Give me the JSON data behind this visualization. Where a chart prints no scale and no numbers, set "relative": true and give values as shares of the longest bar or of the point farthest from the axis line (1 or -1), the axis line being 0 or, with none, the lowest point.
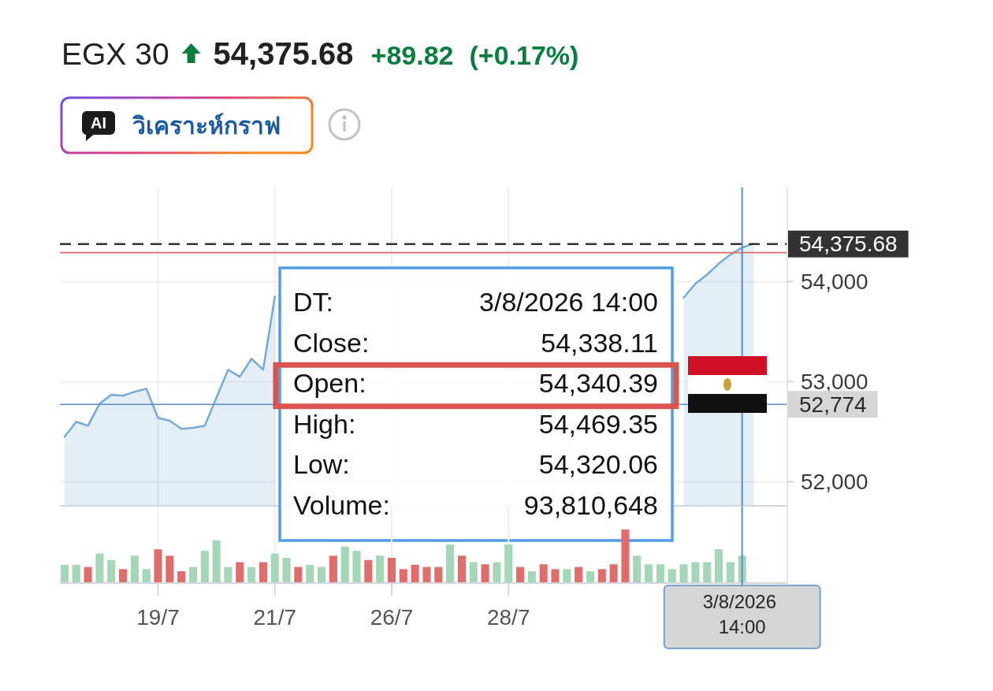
{
  "chart_data": [
    {
      "type": "area",
      "title": "EGX 30",
      "subtitle": "54,375.68",
      "annotations": [
        "+89.82",
        "(+0.17%)",
        "AI",
        "วิเคราะห์กราฟ",
        "DT:",
        "3/8/2026 14:00",
        "Close:",
        "54,338.11",
        "Open:",
        "54,340.39",
        "High:",
        "54,469.35",
        "Low:",
        "54,320.06",
        "Volume:",
        "93,810,648"
      ],
      "categories": [
        null,
        null,
        null,
        null,
        null,
        null,
        null,
        null,
        "19/7",
        null,
        null,
        null,
        null,
        null,
        null,
        null,
        null,
        null,
        "21/7",
        null,
        null,
        null,
        null,
        null,
        null,
        null,
        null,
        null,
        "26/7",
        null,
        null,
        null,
        null,
        null,
        null,
        null,
        null,
        null,
        "28/7",
        null,
        null,
        null,
        null,
        null,
        null,
        null,
        null,
        null,
        null,
        null,
        null,
        null,
        null,
        null,
        null,
        null,
        null,
        null,
        "3/8/2026 14:00",
        null
      ],
      "values": [
        52450,
        52600,
        52560,
        52780,
        52870,
        52860,
        52900,
        52930,
        52640,
        52610,
        52530,
        52540,
        52560,
        52840,
        53120,
        53050,
        53230,
        53120,
        53850,
        null,
        null,
        null,
        null,
        null,
        null,
        null,
        null,
        null,
        null,
        null,
        null,
        null,
        null,
        null,
        null,
        null,
        null,
        null,
        null,
        null,
        null,
        null,
        null,
        null,
        null,
        null,
        null,
        null,
        null,
        null,
        null,
        null,
        null,
        53840,
        53980,
        54070,
        54180,
        54270,
        54340,
        54380
      ],
      "color": "#76a9d6",
      "ylim": [
        51760,
        54940
      ],
      "yticks": [
        {
          "value": 52000,
          "label": "52,000"
        },
        {
          "value": 53000,
          "label": "53,000"
        },
        {
          "value": 54000,
          "label": "54,000"
        }
      ],
      "grid": true,
      "tick_labels": "y",
      "ref_lines": [
        {
          "axis": "y",
          "value": 54375.68,
          "label": "54,375.68",
          "color": "#333333",
          "line_style": "dashed"
        },
        {
          "axis": "y",
          "value": 54290,
          "color": "#e06666"
        },
        {
          "axis": "y",
          "value": 52774,
          "label": "52,774",
          "color": "#5b8ec4"
        },
        {
          "axis": "x",
          "value": "3/8/2026 14:00",
          "color": "#5b8ec4"
        }
      ]
    },
    {
      "type": "bar",
      "relative": true,
      "categories": [
        null,
        null,
        null,
        null,
        null,
        null,
        null,
        null,
        "19/7",
        null,
        null,
        null,
        null,
        null,
        null,
        null,
        null,
        null,
        "21/7",
        null,
        null,
        null,
        null,
        null,
        null,
        null,
        null,
        null,
        "26/7",
        null,
        null,
        null,
        null,
        null,
        null,
        null,
        null,
        null,
        "28/7",
        null,
        null,
        null,
        null,
        null,
        null,
        null,
        null,
        null,
        null,
        null,
        null,
        null,
        null,
        null,
        null,
        null,
        null,
        null,
        "3/8/2026 14:00",
        null
      ],
      "values": [
        0.34,
        0.34,
        0.3,
        0.55,
        0.43,
        0.26,
        0.51,
        0.26,
        0.63,
        0.51,
        0.22,
        0.3,
        0.6,
        0.8,
        0.3,
        0.39,
        0.3,
        0.39,
        0.55,
        0.47,
        0.3,
        0.34,
        0.3,
        0.51,
        0.68,
        0.6,
        0.43,
        0.51,
        0.47,
        0.26,
        0.34,
        0.3,
        0.3,
        0.72,
        0.51,
        0.39,
        0.35,
        0.39,
        0.72,
        0.3,
        0.22,
        0.35,
        0.26,
        0.26,
        0.3,
        0.22,
        0.26,
        0.35,
        1,
        0.51,
        0.35,
        0.35,
        0.26,
        0.35,
        0.39,
        0.39,
        0.63,
        0.39,
        0.51,
        null
      ],
      "colors": [
        "#a5d6b7",
        "#a5d6b7",
        "#e06c6c",
        "#a5d6b7",
        "#a5d6b7",
        "#e06c6c",
        "#a5d6b7",
        "#a5d6b7",
        "#e06c6c",
        "#e06c6c",
        "#e06c6c",
        "#a5d6b7",
        "#a5d6b7",
        "#a5d6b7",
        "#a5d6b7",
        "#e06c6c",
        "#a5d6b7",
        "#e06c6c",
        "#a5d6b7",
        "#a5d6b7",
        "#e06c6c",
        "#a5d6b7",
        "#a5d6b7",
        "#e06c6c",
        "#a5d6b7",
        "#a5d6b7",
        "#e06c6c",
        "#a5d6b7",
        "#e06c6c",
        "#e06c6c",
        "#e06c6c",
        "#e06c6c",
        "#e06c6c",
        "#a5d6b7",
        "#e06c6c",
        "#a5d6b7",
        "#e06c6c",
        "#a5d6b7",
        "#a5d6b7",
        "#e06c6c",
        "#a5d6b7",
        "#e06c6c",
        "#e06c6c",
        "#a5d6b7",
        "#e06c6c",
        "#a5d6b7",
        "#e06c6c",
        "#e06c6c",
        "#e06c6c",
        "#a5d6b7",
        "#a5d6b7",
        "#a5d6b7",
        "#a5d6b7",
        "#a5d6b7",
        "#a5d6b7",
        "#a5d6b7",
        "#a5d6b7",
        "#a5d6b7",
        "#a5d6b7",
        null
      ],
      "grid": "x",
      "tick_labels": "x",
      "ref_lines": [
        {
          "axis": "x",
          "value": "3/8/2026 14:00",
          "color": "#5b8ec4"
        }
      ]
    }
  ]
}
